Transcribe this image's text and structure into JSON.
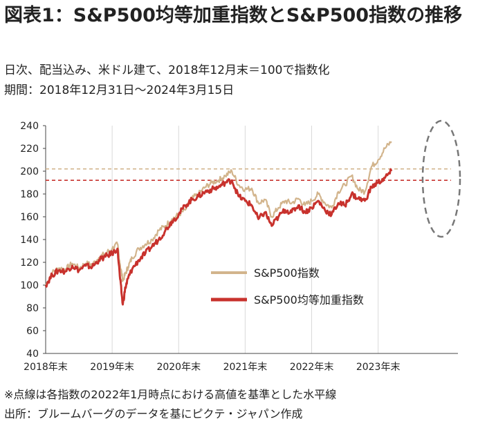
{
  "title": "図表1：S&P500均等加重指数とS&P500指数の推移",
  "subtitle_1": "日次、配当込み、米ドル建て、2018年12月末＝100で指数化",
  "subtitle_2": "期間：2018年12月31日～2024年3月15日",
  "note": "※点線は各指数の2022年1月時点における高値を基準とした水平線",
  "source": "出所：ブルームバーグのデータを基にピクテ・ジャパン作成",
  "colors": {
    "sp500": "#d2b48c",
    "equal_weight": "#c8322d",
    "ellipse": "#777777"
  },
  "chart_data": {
    "type": "line",
    "x_ticks": [
      "2018年末",
      "2019年末",
      "2020年末",
      "2021年末",
      "2022年末",
      "2023年末"
    ],
    "x_range": [
      2018.0,
      2024.2
    ],
    "ylim": [
      40,
      240
    ],
    "y_ticks": [
      40,
      60,
      80,
      100,
      120,
      140,
      160,
      180,
      200,
      220,
      240
    ],
    "grid": "vertical",
    "legend_position": "center-right",
    "series": [
      {
        "name": "S&P500指数",
        "color": "#d2b48c",
        "x": [
          2018.0,
          2018.1,
          2018.2,
          2018.3,
          2018.4,
          2018.5,
          2018.6,
          2018.7,
          2018.8,
          2018.9,
          2019.0,
          2019.08,
          2019.12,
          2019.16,
          2019.2,
          2019.24,
          2019.3,
          2019.4,
          2019.5,
          2019.6,
          2019.7,
          2019.8,
          2019.9,
          2020.0,
          2020.1,
          2020.2,
          2020.3,
          2020.4,
          2020.5,
          2020.6,
          2020.7,
          2020.8,
          2020.9,
          2021.0,
          2021.1,
          2021.2,
          2021.3,
          2021.4,
          2021.5,
          2021.6,
          2021.7,
          2021.8,
          2021.9,
          2022.0,
          2022.1,
          2022.2,
          2022.3,
          2022.4,
          2022.5,
          2022.6,
          2022.7,
          2022.8,
          2022.9,
          2023.0,
          2023.1,
          2023.2
        ],
        "y": [
          100,
          111,
          115,
          114,
          119,
          115,
          119,
          118,
          124,
          128,
          132,
          136,
          118,
          104,
          110,
          116,
          124,
          132,
          136,
          140,
          148,
          152,
          158,
          162,
          166,
          176,
          180,
          186,
          190,
          192,
          196,
          200,
          188,
          184,
          185,
          172,
          175,
          160,
          168,
          174,
          172,
          176,
          170,
          174,
          180,
          172,
          168,
          182,
          188,
          196,
          184,
          182,
          204,
          210,
          220,
          226
        ]
      },
      {
        "name": "S&P500均等加重指数",
        "color": "#c8322d",
        "x": [
          2018.0,
          2018.1,
          2018.2,
          2018.3,
          2018.4,
          2018.5,
          2018.6,
          2018.7,
          2018.8,
          2018.9,
          2019.0,
          2019.08,
          2019.12,
          2019.16,
          2019.2,
          2019.24,
          2019.3,
          2019.4,
          2019.5,
          2019.6,
          2019.7,
          2019.8,
          2019.9,
          2020.0,
          2020.1,
          2020.2,
          2020.3,
          2020.4,
          2020.5,
          2020.6,
          2020.7,
          2020.8,
          2020.9,
          2021.0,
          2021.1,
          2021.2,
          2021.3,
          2021.4,
          2021.5,
          2021.6,
          2021.7,
          2021.8,
          2021.9,
          2022.0,
          2022.1,
          2022.2,
          2022.3,
          2022.4,
          2022.5,
          2022.6,
          2022.7,
          2022.8,
          2022.9,
          2023.0,
          2023.1,
          2023.2
        ],
        "y": [
          100,
          109,
          113,
          112,
          117,
          113,
          117,
          116,
          122,
          125,
          128,
          132,
          105,
          83,
          98,
          106,
          114,
          122,
          128,
          134,
          140,
          148,
          156,
          162,
          170,
          175,
          178,
          182,
          184,
          186,
          190,
          192,
          178,
          174,
          170,
          158,
          164,
          152,
          160,
          166,
          164,
          170,
          164,
          168,
          174,
          166,
          162,
          172,
          170,
          180,
          176,
          174,
          186,
          190,
          194,
          200
        ]
      }
    ],
    "reference_lines": [
      {
        "series": "S&P500指数",
        "y": 202
      },
      {
        "series": "S&P500均等加重指数",
        "y": 192
      }
    ]
  }
}
